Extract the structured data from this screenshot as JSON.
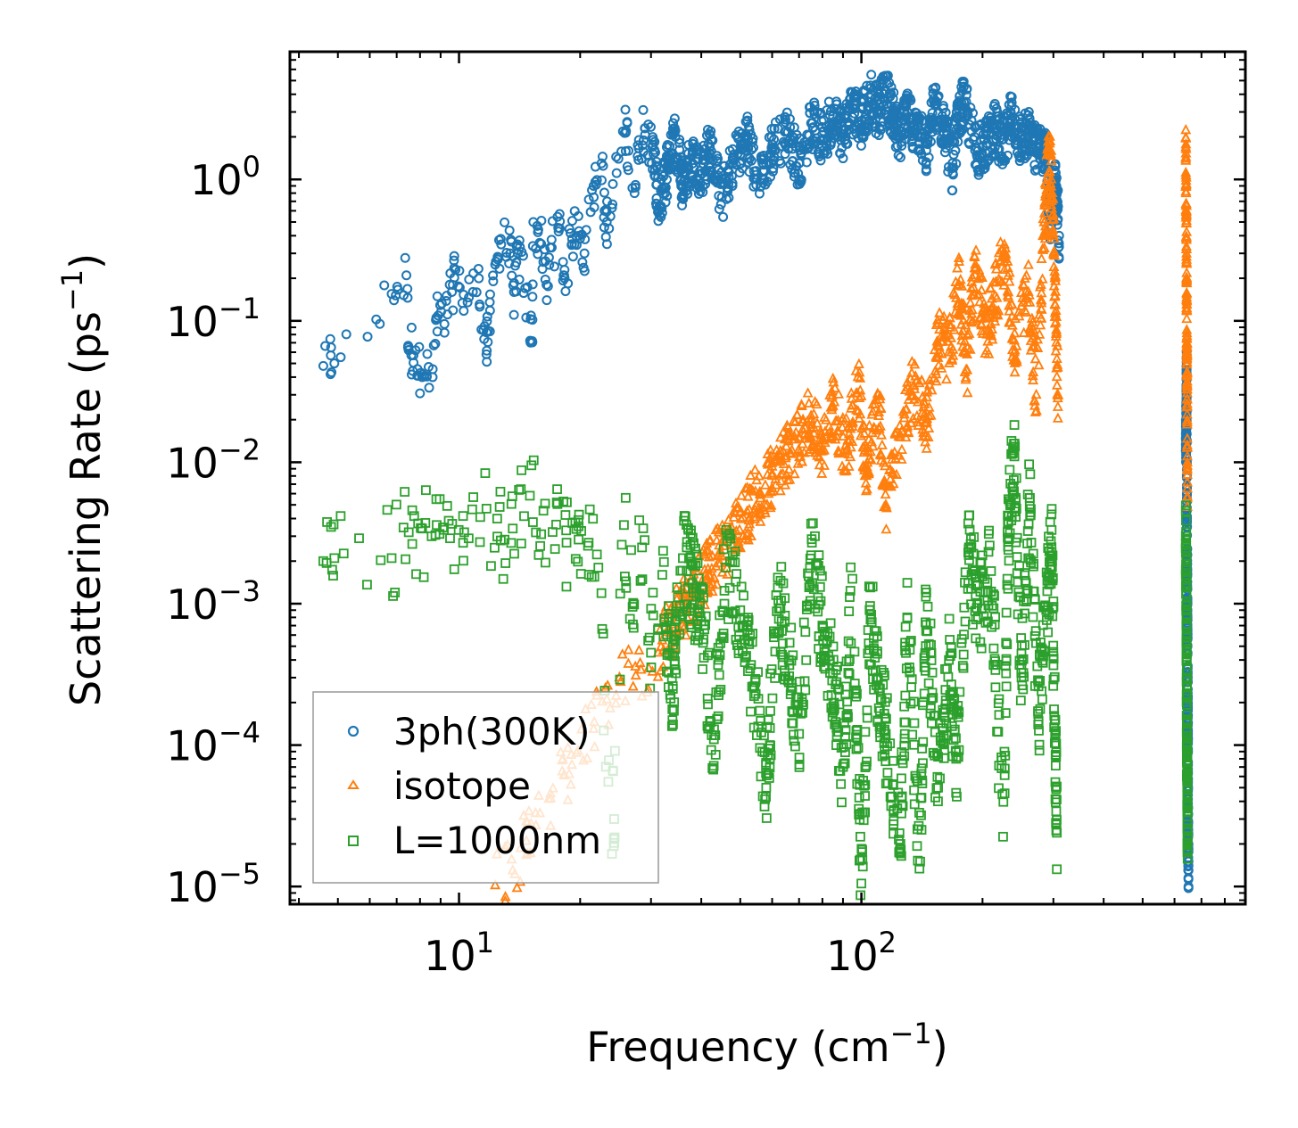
{
  "chart_data": {
    "type": "scatter",
    "xscale": "log",
    "yscale": "log",
    "xlim": [
      3.8,
      900
    ],
    "ylim": [
      7.5e-06,
      8
    ],
    "xlabel": "Frequency (cm",
    "xlabel_unit_exp": "−1",
    "xlabel_close": ")",
    "ylabel": "Scattering Rate (ps",
    "ylabel_unit_exp": "−1",
    "ylabel_close": ")",
    "x_ticks": [
      {
        "value": 10,
        "base": "10",
        "exp": "1"
      },
      {
        "value": 100,
        "base": "10",
        "exp": "2"
      }
    ],
    "y_ticks": [
      {
        "value": 1,
        "base": "10",
        "exp": "0"
      },
      {
        "value": 0.1,
        "base": "10",
        "exp": "−1"
      },
      {
        "value": 0.01,
        "base": "10",
        "exp": "−2"
      },
      {
        "value": 0.001,
        "base": "10",
        "exp": "−3"
      },
      {
        "value": 0.0001,
        "base": "10",
        "exp": "−4"
      },
      {
        "value": 1e-05,
        "base": "10",
        "exp": "−5"
      }
    ],
    "legend_position": "lower-left",
    "series": [
      {
        "name": "3ph(300K)",
        "marker": "circle",
        "color": "#1f77b4",
        "points": [
          [
            4.6,
            0.048
          ],
          [
            4.9,
            0.05
          ],
          [
            6.8,
            0.155
          ],
          [
            7.4,
            0.21
          ],
          [
            7.5,
            0.062
          ],
          [
            7.8,
            0.062
          ],
          [
            8.1,
            0.04
          ],
          [
            8.6,
            0.04
          ],
          [
            8.8,
            0.105
          ],
          [
            9.2,
            0.095
          ],
          [
            9.6,
            0.16
          ],
          [
            9.8,
            0.23
          ],
          [
            10.5,
            0.135
          ],
          [
            11.2,
            0.2
          ],
          [
            11.7,
            0.058
          ],
          [
            11.8,
            0.085
          ],
          [
            12.3,
            0.25
          ],
          [
            12.7,
            0.38
          ],
          [
            13.4,
            0.3
          ],
          [
            13.7,
            0.16
          ],
          [
            14,
            0.3
          ],
          [
            14.6,
            0.17
          ],
          [
            15.2,
            0.072
          ],
          [
            15.3,
            0.5
          ],
          [
            16,
            0.35
          ],
          [
            16.5,
            0.18
          ],
          [
            17,
            0.33
          ],
          [
            17.8,
            0.45
          ],
          [
            18.3,
            0.2
          ],
          [
            19.1,
            0.38
          ],
          [
            19.8,
            0.55
          ],
          [
            20.5,
            0.3
          ],
          [
            21.6,
            0.9
          ],
          [
            22.6,
            1.3
          ],
          [
            23,
            0.6
          ],
          [
            23.6,
            0.45
          ],
          [
            24.9,
            1.4
          ],
          [
            26,
            2.2
          ],
          [
            27.3,
            0.8
          ],
          [
            28,
            1.9
          ],
          [
            29,
            2.3
          ],
          [
            30.2,
            1.7
          ],
          [
            31.5,
            0.65
          ],
          [
            33,
            1.2
          ],
          [
            34.5,
            2.0
          ],
          [
            36,
            0.9
          ],
          [
            38,
            1.5
          ],
          [
            40,
            1.1
          ],
          [
            42,
            1.7
          ],
          [
            45,
            0.75
          ],
          [
            48,
            1.3
          ],
          [
            52,
            2.0
          ],
          [
            55,
            1.0
          ],
          [
            60,
            1.6
          ],
          [
            65,
            2.2
          ],
          [
            70,
            1.3
          ],
          [
            75,
            2.5
          ],
          [
            80,
            1.9
          ],
          [
            85,
            2.8
          ],
          [
            90,
            2.1
          ],
          [
            95,
            3.2
          ],
          [
            100,
            2.6
          ],
          [
            105,
            3.8
          ],
          [
            110,
            3.0
          ],
          [
            115,
            4.2
          ],
          [
            120,
            2.8
          ],
          [
            125,
            2.0
          ],
          [
            130,
            3.0
          ],
          [
            138,
            2.1
          ],
          [
            145,
            1.6
          ],
          [
            152,
            3.4
          ],
          [
            160,
            2.5
          ],
          [
            168,
            1.2
          ],
          [
            175,
            2.8
          ],
          [
            180,
            3.5
          ],
          [
            195,
            1.6
          ],
          [
            205,
            1.8
          ],
          [
            215,
            2.3
          ],
          [
            225,
            1.4
          ],
          [
            235,
            3.0
          ],
          [
            250,
            1.8
          ],
          [
            262,
            2.2
          ],
          [
            275,
            1.5
          ],
          [
            285,
            1.7
          ],
          [
            295,
            0.55
          ],
          [
            300,
            0.8
          ],
          [
            305,
            0.9
          ],
          [
            310,
            0.4
          ],
          [
            640,
            0.012
          ],
          [
            642,
            0.02
          ],
          [
            643,
            0.045
          ],
          [
            644,
            0.006
          ],
          [
            645,
            0.002
          ],
          [
            646,
            0.0008
          ],
          [
            647,
            0.0003
          ],
          [
            648,
            0.00011
          ],
          [
            648,
            5e-05
          ],
          [
            649,
            2e-05
          ],
          [
            650,
            1.3e-05
          ]
        ]
      },
      {
        "name": "isotope",
        "marker": "triangle",
        "color": "#ff7f0e",
        "points": [
          [
            12.3,
            1.02e-05
          ],
          [
            13.6,
            1.3e-05
          ],
          [
            14.7,
            2.1e-05
          ],
          [
            15.5,
            3.3e-05
          ],
          [
            16.9,
            4.2e-05
          ],
          [
            18.3,
            6.1e-05
          ],
          [
            19.6,
            8.8e-05
          ],
          [
            21.6,
            0.00013
          ],
          [
            23.3,
            0.00021
          ],
          [
            25.2,
            0.00028
          ],
          [
            27.5,
            0.00031
          ],
          [
            29.6,
            0.00035
          ],
          [
            32,
            0.00055
          ],
          [
            35,
            0.0008
          ],
          [
            38,
            0.0011
          ],
          [
            41,
            0.0016
          ],
          [
            44,
            0.0022
          ],
          [
            48,
            0.003
          ],
          [
            52,
            0.0045
          ],
          [
            56,
            0.006
          ],
          [
            60,
            0.008
          ],
          [
            65,
            0.011
          ],
          [
            70,
            0.015
          ],
          [
            75,
            0.02
          ],
          [
            80,
            0.012
          ],
          [
            85,
            0.025
          ],
          [
            92,
            0.012
          ],
          [
            98,
            0.04
          ],
          [
            103,
            0.008
          ],
          [
            110,
            0.03
          ],
          [
            115,
            0.005
          ],
          [
            125,
            0.015
          ],
          [
            135,
            0.035
          ],
          [
            145,
            0.02
          ],
          [
            155,
            0.07
          ],
          [
            165,
            0.06
          ],
          [
            175,
            0.18
          ],
          [
            183,
            0.045
          ],
          [
            192,
            0.25
          ],
          [
            205,
            0.08
          ],
          [
            215,
            0.15
          ],
          [
            228,
            0.3
          ],
          [
            240,
            0.06
          ],
          [
            260,
            0.16
          ],
          [
            272,
            0.03
          ],
          [
            285,
            0.5
          ],
          [
            292,
            1.5
          ],
          [
            298,
            0.8
          ],
          [
            303,
            0.15
          ],
          [
            308,
            0.03
          ],
          [
            640,
            1.4
          ],
          [
            642,
            0.6
          ],
          [
            643,
            0.2
          ],
          [
            644,
            0.07
          ],
          [
            645,
            0.035
          ],
          [
            646,
            0.0065
          ]
        ]
      },
      {
        "name": "L=1000nm",
        "marker": "square",
        "color": "#2ca02c",
        "points": [
          [
            4.6,
            0.002
          ],
          [
            4.9,
            0.0021
          ],
          [
            6.8,
            0.0021
          ],
          [
            7.5,
            0.0032
          ],
          [
            8.1,
            0.0034
          ],
          [
            8.8,
            0.0036
          ],
          [
            9.5,
            0.0029
          ],
          [
            10.3,
            0.0032
          ],
          [
            11.7,
            0.0047
          ],
          [
            12.7,
            0.0028
          ],
          [
            13.6,
            0.0034
          ],
          [
            15,
            0.0058
          ],
          [
            16,
            0.0031
          ],
          [
            17.5,
            0.0052
          ],
          [
            18.5,
            0.0027
          ],
          [
            19.8,
            0.0039
          ],
          [
            21,
            0.0027
          ],
          [
            22.2,
            0.0018
          ],
          [
            23.5,
            5.5e-05
          ],
          [
            24.3,
            3e-05
          ],
          [
            25.7,
            0.0036
          ],
          [
            27,
            0.00095
          ],
          [
            28.5,
            0.0025
          ],
          [
            30,
            0.00045
          ],
          [
            32,
            0.0016
          ],
          [
            34,
            0.00025
          ],
          [
            36,
            0.0021
          ],
          [
            38,
            0.0014
          ],
          [
            40,
            0.00075
          ],
          [
            43,
            0.00011
          ],
          [
            46,
            0.0018
          ],
          [
            50,
            0.0009
          ],
          [
            54,
            0.00026
          ],
          [
            58,
            5e-05
          ],
          [
            62,
            0.0013
          ],
          [
            66,
            0.0004
          ],
          [
            70,
            0.00012
          ],
          [
            75,
            0.0022
          ],
          [
            80,
            0.0007
          ],
          [
            85,
            0.00032
          ],
          [
            90,
            7e-05
          ],
          [
            95,
            0.0015
          ],
          [
            100,
            1.05e-05
          ],
          [
            105,
            0.0009
          ],
          [
            110,
            0.0003
          ],
          [
            115,
            0.00012
          ],
          [
            125,
            2e-05
          ],
          [
            130,
            0.0008
          ],
          [
            140,
            1.5e-05
          ],
          [
            145,
            0.0012
          ],
          [
            155,
            4e-05
          ],
          [
            165,
            0.0004
          ],
          [
            172,
            8e-05
          ],
          [
            185,
            0.0025
          ],
          [
            195,
            0.0008
          ],
          [
            210,
            0.0017
          ],
          [
            225,
            2.25e-05
          ],
          [
            232,
            0.0038
          ],
          [
            240,
            0.011
          ],
          [
            250,
            0.0003
          ],
          [
            262,
            0.0056
          ],
          [
            275,
            0.00014
          ],
          [
            288,
            0.0009
          ],
          [
            297,
            0.0023
          ],
          [
            303,
            0.00012
          ],
          [
            306,
            2.4e-05
          ],
          [
            640,
            0.003
          ],
          [
            642,
            0.0013
          ],
          [
            643,
            0.0004
          ],
          [
            644,
            0.00015
          ],
          [
            645,
            9e-05
          ],
          [
            646,
            4e-05
          ],
          [
            647,
            2.2e-05
          ]
        ]
      }
    ]
  }
}
